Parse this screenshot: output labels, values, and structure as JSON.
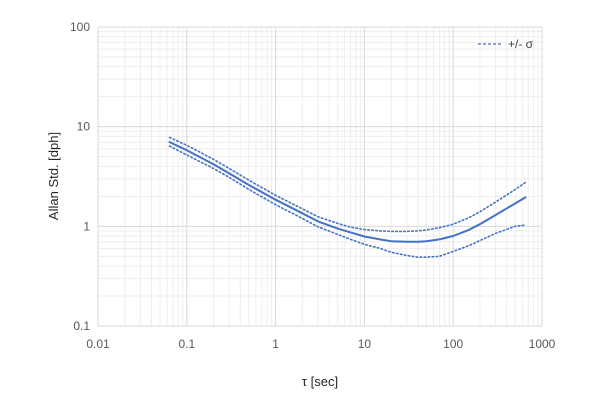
{
  "chart_data": {
    "type": "line",
    "title": "",
    "xlabel": "τ  [sec]",
    "ylabel": "Allan Std.  [dph]",
    "x_scale": "log",
    "y_scale": "log",
    "xlim": [
      0.01,
      1000
    ],
    "ylim": [
      0.1,
      100
    ],
    "x_ticks": [
      "0.01",
      "0.1",
      "1",
      "10",
      "100",
      "1000"
    ],
    "y_ticks": [
      "0.1",
      "1",
      "10",
      "100"
    ],
    "grid": true,
    "legend": {
      "position": "top-right",
      "label": "+/- σ"
    },
    "colors": {
      "series": "#4472c4",
      "major_grid": "#d9d9d9",
      "minor_grid": "#eeeeee"
    },
    "x": [
      0.064,
      0.1,
      0.2,
      0.3,
      0.5,
      1,
      2,
      3,
      5,
      7,
      10,
      15,
      20,
      30,
      40,
      50,
      70,
      100,
      150,
      200,
      300,
      500,
      650
    ],
    "series": [
      {
        "style": "solid",
        "values": [
          7.0,
          5.8,
          4.2,
          3.4,
          2.6,
          1.85,
          1.35,
          1.12,
          0.95,
          0.87,
          0.79,
          0.74,
          0.71,
          0.7,
          0.7,
          0.71,
          0.74,
          0.8,
          0.92,
          1.05,
          1.3,
          1.7,
          1.95
        ]
      },
      {
        "name": "+/- σ",
        "style": "dotted",
        "values": [
          7.8,
          6.5,
          4.7,
          3.8,
          2.9,
          2.05,
          1.5,
          1.25,
          1.07,
          0.98,
          0.93,
          0.9,
          0.89,
          0.89,
          0.9,
          0.92,
          0.97,
          1.05,
          1.22,
          1.4,
          1.75,
          2.35,
          2.75
        ]
      },
      {
        "name": "+/- σ",
        "style": "dotted",
        "values": [
          6.4,
          5.2,
          3.8,
          3.1,
          2.35,
          1.65,
          1.2,
          0.99,
          0.83,
          0.74,
          0.66,
          0.6,
          0.55,
          0.51,
          0.49,
          0.49,
          0.5,
          0.56,
          0.64,
          0.72,
          0.85,
          1.0,
          1.03
        ]
      }
    ]
  }
}
